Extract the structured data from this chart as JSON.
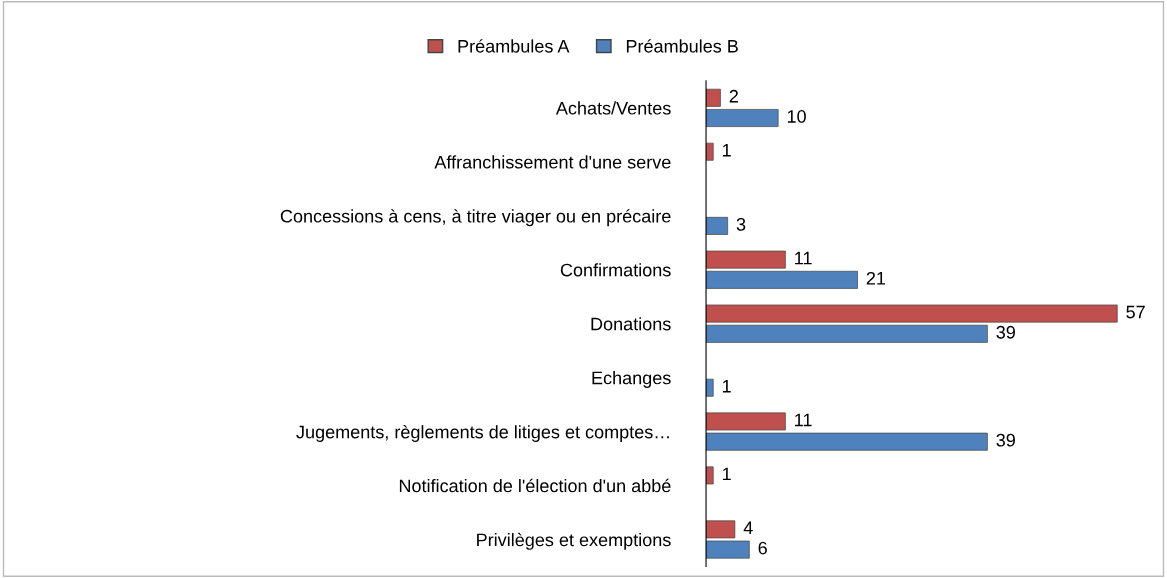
{
  "chart_data": {
    "type": "bar",
    "orientation": "horizontal",
    "categories": [
      "Achats/Ventes",
      "Affranchissement d'une serve",
      "Concessions à cens, à titre viager ou en précaire",
      "Confirmations",
      "Donations",
      "Echanges",
      "Jugements, règlements de litiges et comptes…",
      "Notification de l'élection d'un abbé",
      "Privilèges et exemptions"
    ],
    "series": [
      {
        "name": "Préambules A",
        "color": "#c0504d",
        "values": [
          2,
          1,
          null,
          11,
          57,
          null,
          11,
          1,
          4
        ]
      },
      {
        "name": "Préambules B",
        "color": "#4f81bd",
        "values": [
          10,
          null,
          3,
          21,
          39,
          1,
          39,
          null,
          6
        ]
      }
    ],
    "data_labels": true,
    "legend": "top",
    "grid": false
  }
}
